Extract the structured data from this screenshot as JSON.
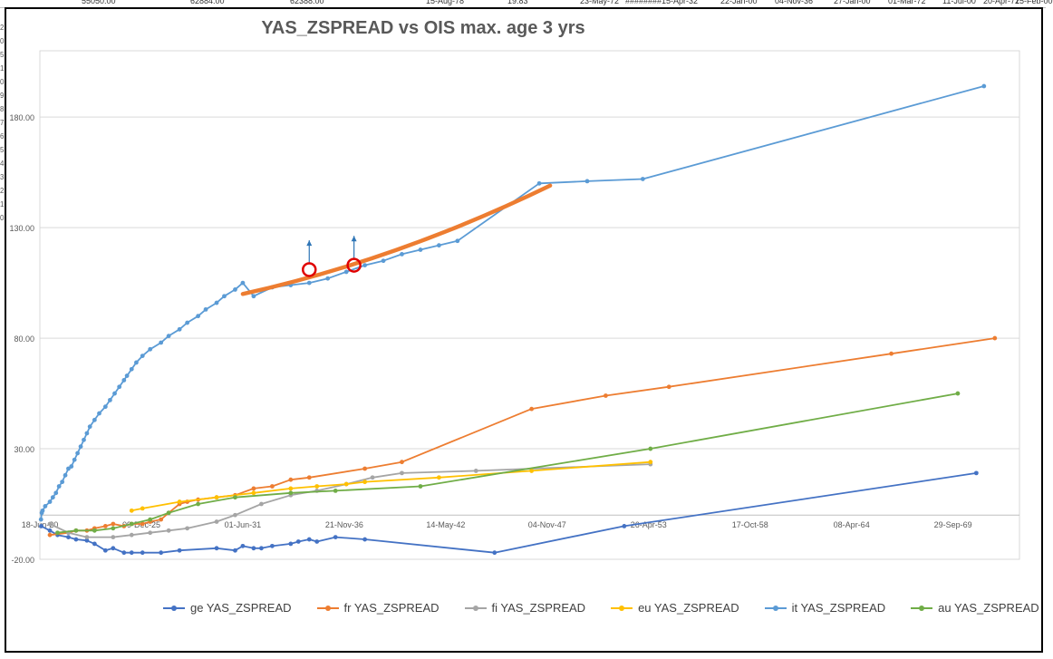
{
  "sheet": {
    "top_cells": [
      "55050.00",
      "62884.00",
      "62388.00",
      "15-Aug-78",
      "19.83",
      "23-May-72",
      "########",
      "15-Apr-32",
      "22-Jan-00",
      "04-Nov-36",
      "27-Jan-00",
      "01-Mar-72",
      "11-Jul-00",
      "20-Apr-71",
      "25-Feb-00"
    ],
    "row_labels": [
      "2",
      "0",
      "5",
      "1",
      "0",
      "9",
      "8",
      "7",
      "6",
      "5",
      "4",
      "3",
      "2",
      "1",
      "0"
    ]
  },
  "chart_data": {
    "type": "line",
    "title": "YAS_ZSPREAD vs OIS max. age 3 yrs",
    "x_is_date": true,
    "xlim": [
      "2020-06-18",
      "2073-05-01"
    ],
    "ylim": [
      -20,
      210
    ],
    "y_ticks": [
      "-20.00",
      "30.00",
      "80.00",
      "130.00",
      "180.00"
    ],
    "y_tick_values": [
      -20,
      30,
      80,
      130,
      180
    ],
    "x_ticks": [
      {
        "label": "18-Jun-20",
        "date": "2020-06-18"
      },
      {
        "label": "09-Dec-25",
        "date": "2025-12-09"
      },
      {
        "label": "01-Jun-31",
        "date": "2031-06-01"
      },
      {
        "label": "21-Nov-36",
        "date": "2036-11-21"
      },
      {
        "label": "14-May-42",
        "date": "2042-05-14"
      },
      {
        "label": "04-Nov-47",
        "date": "2047-11-04"
      },
      {
        "label": "26-Apr-53",
        "date": "2053-04-26"
      },
      {
        "label": "17-Oct-58",
        "date": "2058-10-17"
      },
      {
        "label": "08-Apr-64",
        "date": "2064-04-08"
      },
      {
        "label": "29-Sep-69",
        "date": "2069-09-29"
      }
    ],
    "grid": true,
    "legend_position": "bottom",
    "series": [
      {
        "name": "ge YAS_ZSPREAD",
        "color": "#4472C4",
        "points": [
          [
            "2020-07-15",
            -5
          ],
          [
            "2021-01-01",
            -7
          ],
          [
            "2021-06-01",
            -9
          ],
          [
            "2022-01-01",
            -10
          ],
          [
            "2022-06-01",
            -11
          ],
          [
            "2023-01-01",
            -11.5
          ],
          [
            "2023-06-01",
            -13
          ],
          [
            "2024-01-01",
            -16
          ],
          [
            "2024-06-01",
            -15
          ],
          [
            "2025-01-01",
            -17
          ],
          [
            "2025-06-01",
            -17
          ],
          [
            "2026-01-01",
            -17
          ],
          [
            "2027-01-01",
            -17
          ],
          [
            "2028-01-01",
            -16
          ],
          [
            "2030-01-01",
            -15
          ],
          [
            "2031-01-01",
            -16
          ],
          [
            "2031-06-01",
            -14
          ],
          [
            "2032-01-01",
            -15
          ],
          [
            "2032-06-01",
            -15
          ],
          [
            "2033-01-01",
            -14
          ],
          [
            "2034-01-01",
            -13
          ],
          [
            "2034-06-01",
            -12
          ],
          [
            "2035-01-01",
            -11
          ],
          [
            "2035-06-01",
            -12
          ],
          [
            "2036-06-01",
            -10
          ],
          [
            "2038-01-01",
            -11
          ],
          [
            "2045-01-01",
            -17
          ],
          [
            "2052-01-01",
            -5
          ],
          [
            "2071-01-01",
            19
          ]
        ]
      },
      {
        "name": "fr YAS_ZSPREAD",
        "color": "#ED7D31",
        "points": [
          [
            "2021-01-01",
            -9
          ],
          [
            "2022-01-01",
            -8
          ],
          [
            "2022-06-01",
            -7
          ],
          [
            "2023-01-01",
            -7
          ],
          [
            "2023-06-01",
            -6
          ],
          [
            "2024-01-01",
            -5
          ],
          [
            "2024-06-01",
            -4
          ],
          [
            "2025-01-01",
            -5
          ],
          [
            "2025-06-01",
            -4
          ],
          [
            "2026-01-01",
            -4
          ],
          [
            "2026-06-01",
            -3
          ],
          [
            "2027-01-01",
            -2
          ],
          [
            "2027-06-01",
            1
          ],
          [
            "2028-01-01",
            5
          ],
          [
            "2028-06-01",
            6
          ],
          [
            "2029-01-01",
            7
          ],
          [
            "2030-01-01",
            8
          ],
          [
            "2031-01-01",
            9
          ],
          [
            "2032-01-01",
            12
          ],
          [
            "2033-01-01",
            13
          ],
          [
            "2034-01-01",
            16
          ],
          [
            "2035-01-01",
            17
          ],
          [
            "2038-01-01",
            21
          ],
          [
            "2040-01-01",
            24
          ],
          [
            "2047-01-01",
            48
          ],
          [
            "2051-01-01",
            54
          ],
          [
            "2054-06-01",
            58
          ],
          [
            "2066-06-01",
            73
          ],
          [
            "2072-01-01",
            80
          ]
        ]
      },
      {
        "name": "fi YAS_ZSPREAD",
        "color": "#A5A5A5",
        "points": [
          [
            "2021-01-01",
            -4
          ],
          [
            "2022-01-01",
            -8
          ],
          [
            "2023-01-01",
            -10
          ],
          [
            "2024-06-01",
            -10
          ],
          [
            "2025-06-01",
            -9
          ],
          [
            "2026-06-01",
            -8
          ],
          [
            "2027-06-01",
            -7
          ],
          [
            "2028-06-01",
            -6
          ],
          [
            "2030-01-01",
            -3
          ],
          [
            "2031-01-01",
            0
          ],
          [
            "2032-06-01",
            5
          ],
          [
            "2034-01-01",
            9
          ],
          [
            "2035-06-01",
            11
          ],
          [
            "2037-01-01",
            14
          ],
          [
            "2038-06-01",
            17
          ],
          [
            "2040-01-01",
            19
          ],
          [
            "2044-01-01",
            20
          ],
          [
            "2053-06-01",
            23
          ]
        ]
      },
      {
        "name": "eu YAS_ZSPREAD",
        "color": "#FFC000",
        "points": [
          [
            "2025-06-01",
            2
          ],
          [
            "2026-01-01",
            3
          ],
          [
            "2028-01-01",
            6
          ],
          [
            "2030-01-01",
            8
          ],
          [
            "2032-01-01",
            10
          ],
          [
            "2034-01-01",
            12
          ],
          [
            "2035-06-01",
            13
          ],
          [
            "2037-01-01",
            14
          ],
          [
            "2038-01-01",
            15
          ],
          [
            "2042-01-01",
            17
          ],
          [
            "2047-01-01",
            20
          ],
          [
            "2053-06-01",
            24
          ]
        ]
      },
      {
        "name": "it YAS_ZSPREAD",
        "color": "#5B9BD5",
        "points": [
          [
            "2020-07-10",
            -2
          ],
          [
            "2020-07-25",
            1
          ],
          [
            "2020-08-10",
            2
          ],
          [
            "2020-10-01",
            4
          ],
          [
            "2021-01-01",
            6
          ],
          [
            "2021-03-01",
            8
          ],
          [
            "2021-05-01",
            10
          ],
          [
            "2021-07-01",
            13
          ],
          [
            "2021-09-01",
            15
          ],
          [
            "2021-11-01",
            18
          ],
          [
            "2022-01-01",
            21
          ],
          [
            "2022-03-01",
            22
          ],
          [
            "2022-05-01",
            25
          ],
          [
            "2022-07-01",
            28
          ],
          [
            "2022-09-01",
            31
          ],
          [
            "2022-11-01",
            34
          ],
          [
            "2023-01-01",
            37
          ],
          [
            "2023-03-01",
            40
          ],
          [
            "2023-06-01",
            43
          ],
          [
            "2023-09-01",
            46
          ],
          [
            "2024-01-01",
            49
          ],
          [
            "2024-04-01",
            52
          ],
          [
            "2024-07-01",
            55
          ],
          [
            "2024-10-01",
            58
          ],
          [
            "2025-01-01",
            61
          ],
          [
            "2025-03-01",
            63
          ],
          [
            "2025-06-01",
            66
          ],
          [
            "2025-09-01",
            69
          ],
          [
            "2026-01-01",
            72
          ],
          [
            "2026-06-01",
            75
          ],
          [
            "2027-01-01",
            78
          ],
          [
            "2027-06-01",
            81
          ],
          [
            "2028-01-01",
            84
          ],
          [
            "2028-06-01",
            87
          ],
          [
            "2029-01-01",
            90
          ],
          [
            "2029-06-01",
            93
          ],
          [
            "2030-01-01",
            96
          ],
          [
            "2030-06-01",
            99
          ],
          [
            "2031-01-01",
            102
          ],
          [
            "2031-06-01",
            105
          ],
          [
            "2032-01-01",
            99
          ],
          [
            "2033-01-01",
            103
          ],
          [
            "2034-01-01",
            104
          ],
          [
            "2035-01-01",
            105
          ],
          [
            "2036-01-01",
            107
          ],
          [
            "2037-01-01",
            110
          ],
          [
            "2038-01-01",
            113
          ],
          [
            "2039-01-01",
            115
          ],
          [
            "2040-01-01",
            118
          ],
          [
            "2041-01-01",
            120
          ],
          [
            "2042-01-01",
            122
          ],
          [
            "2043-01-01",
            124
          ],
          [
            "2047-06-01",
            150
          ],
          [
            "2050-01-01",
            151
          ],
          [
            "2053-01-01",
            152
          ],
          [
            "2071-06-01",
            194
          ]
        ]
      },
      {
        "name": "au YAS_ZSPREAD",
        "color": "#70AD47",
        "points": [
          [
            "2021-06-01",
            -8
          ],
          [
            "2022-06-01",
            -7
          ],
          [
            "2023-06-01",
            -7
          ],
          [
            "2024-06-01",
            -6
          ],
          [
            "2025-06-01",
            -4
          ],
          [
            "2026-06-01",
            -2
          ],
          [
            "2027-06-01",
            1
          ],
          [
            "2029-01-01",
            5
          ],
          [
            "2031-01-01",
            8
          ],
          [
            "2034-01-01",
            10
          ],
          [
            "2036-06-01",
            11
          ],
          [
            "2041-01-01",
            13
          ],
          [
            "2053-06-01",
            30
          ],
          [
            "2070-01-01",
            55
          ]
        ]
      }
    ],
    "annotations": {
      "trend_line": {
        "color": "#ED7D31",
        "from": [
          "2031-06-01",
          100
        ],
        "to": [
          "2048-01-01",
          149
        ]
      },
      "circles": [
        [
          "2035-01-01",
          111
        ],
        [
          "2037-06-01",
          113
        ]
      ],
      "arrows": [
        [
          "2035-01-01",
          111,
          121
        ],
        [
          "2037-06-01",
          113,
          123
        ]
      ]
    }
  }
}
